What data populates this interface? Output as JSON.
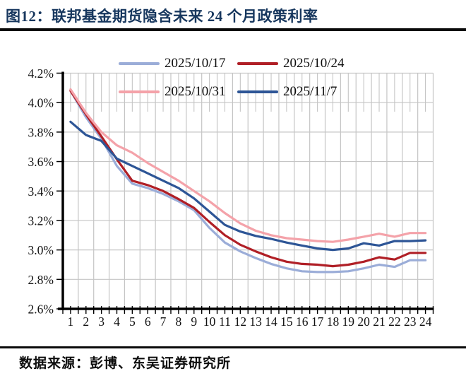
{
  "title": "图12：联邦基金期货隐含未来 24 个月政策利率",
  "source": "数据来源：彭博、东吴证券研究所",
  "colors": {
    "title_navy": "#17375e",
    "rule_black": "#0a0a0a",
    "gridline_gray": "#c5c5c5",
    "axis_black": "#000000"
  },
  "chart_data": {
    "type": "line",
    "title": "图12：联邦基金期货隐含未来 24 个月政策利率",
    "xlabel": "",
    "ylabel": "",
    "x": [
      1,
      2,
      3,
      4,
      5,
      6,
      7,
      8,
      9,
      10,
      11,
      12,
      13,
      14,
      15,
      16,
      17,
      18,
      19,
      20,
      21,
      22,
      23,
      24
    ],
    "series": [
      {
        "name": "2025/10/17",
        "color": "#9badd8",
        "values": [
          4.08,
          3.9,
          3.755,
          3.57,
          3.45,
          3.42,
          3.38,
          3.33,
          3.27,
          3.15,
          3.05,
          2.99,
          2.945,
          2.905,
          2.875,
          2.855,
          2.85,
          2.85,
          2.855,
          2.875,
          2.9,
          2.885,
          2.93,
          2.93
        ]
      },
      {
        "name": "2025/10/24",
        "color": "#b01f26",
        "values": [
          4.08,
          3.92,
          3.77,
          3.615,
          3.47,
          3.44,
          3.4,
          3.345,
          3.285,
          3.19,
          3.1,
          3.035,
          2.99,
          2.95,
          2.92,
          2.905,
          2.9,
          2.89,
          2.9,
          2.92,
          2.95,
          2.935,
          2.98,
          2.98
        ]
      },
      {
        "name": "2025/10/31",
        "color": "#f4a2a9",
        "values": [
          4.09,
          3.93,
          3.8,
          3.71,
          3.66,
          3.59,
          3.53,
          3.47,
          3.4,
          3.33,
          3.25,
          3.18,
          3.13,
          3.1,
          3.08,
          3.07,
          3.06,
          3.055,
          3.07,
          3.09,
          3.11,
          3.09,
          3.115,
          3.115
        ]
      },
      {
        "name": "2025/11/7",
        "color": "#2d5596",
        "values": [
          3.87,
          3.78,
          3.74,
          3.62,
          3.57,
          3.52,
          3.47,
          3.42,
          3.35,
          3.26,
          3.17,
          3.125,
          3.095,
          3.075,
          3.05,
          3.03,
          3.01,
          3.0,
          3.01,
          3.045,
          3.03,
          3.06,
          3.06,
          3.065
        ]
      }
    ],
    "y_ticks": [
      "2.6%",
      "2.8%",
      "3.0%",
      "3.2%",
      "3.4%",
      "3.6%",
      "3.8%",
      "4.0%",
      "4.2%"
    ],
    "ylim": [
      2.6,
      4.2
    ],
    "grid": true,
    "legend_position": "top"
  }
}
